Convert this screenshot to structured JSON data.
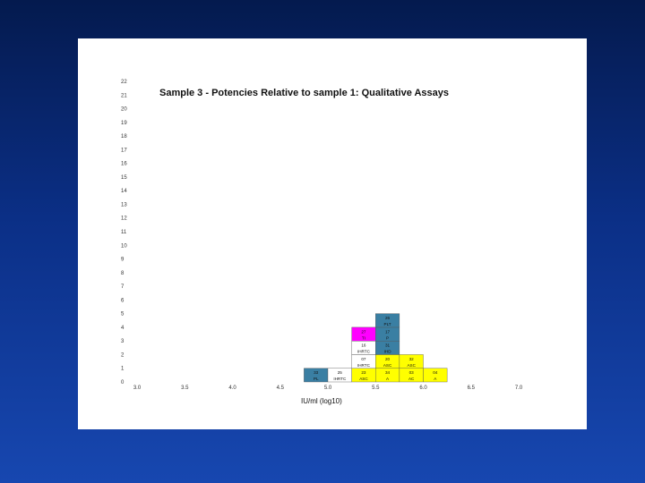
{
  "colors": {
    "background_top": "#041a4e",
    "background_bottom": "#1747b0",
    "panel": "#ffffff",
    "steel_blue": "#3a7fa3",
    "white": "#ffffff",
    "yellow": "#ffff00",
    "magenta": "#ff00ff",
    "edge": "#555555"
  },
  "chart_data": {
    "type": "bar",
    "subtype": "stacked histogram of individual laboratory estimates",
    "title": "Sample 3 - Potencies Relative to sample 1: Qualitative Assays",
    "xlabel": "IU/ml (log10)",
    "ylabel": "",
    "xlim": [
      3.0,
      7.0
    ],
    "ylim": [
      0,
      22
    ],
    "bin_width": 0.25,
    "x_ticks": [
      3.0,
      3.5,
      4.0,
      4.5,
      5.0,
      5.5,
      6.0,
      6.5,
      7.0
    ],
    "x_tick_labels": [
      "3.0",
      "3.5",
      "4.0",
      "4.5",
      "5.0",
      "5.5",
      "6.0",
      "6.5",
      "7.0"
    ],
    "y_tick_labels": [
      "0",
      "1",
      "2",
      "3",
      "4",
      "5",
      "6",
      "7",
      "8",
      "9",
      "10",
      "11",
      "12",
      "13",
      "14",
      "15",
      "16",
      "17",
      "18",
      "19",
      "20",
      "21",
      "22"
    ],
    "grid": false,
    "legend": "none",
    "cells": [
      {
        "bin_start": 4.75,
        "level": 0,
        "lab": "33",
        "method": "PL",
        "color": "steel_blue"
      },
      {
        "bin_start": 5.0,
        "level": 0,
        "lab": "25",
        "method": "IHRTC",
        "color": "white"
      },
      {
        "bin_start": 5.25,
        "level": 0,
        "lab": "23",
        "method": "ASC",
        "color": "yellow"
      },
      {
        "bin_start": 5.25,
        "level": 1,
        "lab": "07",
        "method": "IHRTC",
        "color": "white"
      },
      {
        "bin_start": 5.25,
        "level": 2,
        "lab": "16",
        "method": "IHRTC",
        "color": "white"
      },
      {
        "bin_start": 5.25,
        "level": 3,
        "lab": "27",
        "method": "TI",
        "color": "magenta"
      },
      {
        "bin_start": 5.5,
        "level": 0,
        "lab": "34",
        "method": "A",
        "color": "yellow"
      },
      {
        "bin_start": 5.5,
        "level": 1,
        "lab": "20",
        "method": "ASC",
        "color": "yellow"
      },
      {
        "bin_start": 5.5,
        "level": 2,
        "lab": "31",
        "method": "IHD",
        "color": "steel_blue"
      },
      {
        "bin_start": 5.5,
        "level": 3,
        "lab": "17",
        "method": "P",
        "color": "steel_blue"
      },
      {
        "bin_start": 5.5,
        "level": 4,
        "lab": "26",
        "method": "PLT",
        "color": "steel_blue"
      },
      {
        "bin_start": 5.75,
        "level": 0,
        "lab": "03",
        "method": "AC",
        "color": "yellow"
      },
      {
        "bin_start": 5.75,
        "level": 1,
        "lab": "32",
        "method": "ASC",
        "color": "yellow"
      },
      {
        "bin_start": 6.0,
        "level": 0,
        "lab": "04",
        "method": "A",
        "color": "yellow"
      }
    ]
  }
}
